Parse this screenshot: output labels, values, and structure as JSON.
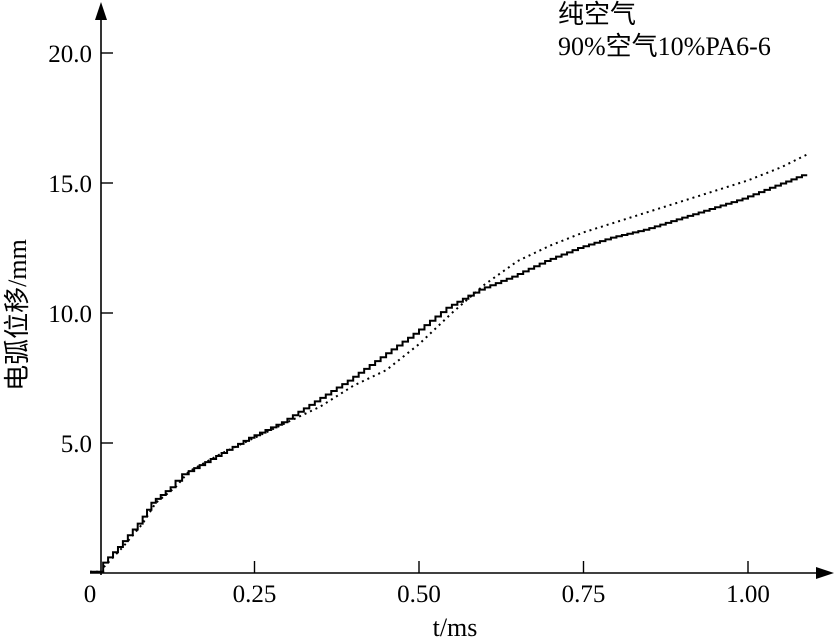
{
  "chart_data": {
    "type": "line",
    "title": "",
    "xlabel": "t/ms",
    "ylabel": "电弧位移/mm",
    "xlim": [
      0,
      1.1
    ],
    "ylim": [
      0,
      20.0
    ],
    "x_ticks": [
      0,
      0.25,
      0.5,
      0.75,
      1.0
    ],
    "x_tick_labels": [
      "0",
      "0.25",
      "0.50",
      "0.75",
      "1.00"
    ],
    "y_ticks": [
      5,
      10,
      15,
      20
    ],
    "y_tick_labels": [
      "5.0",
      "10.0",
      "15.0",
      "20.0"
    ],
    "grid": false,
    "legend_position": "top-right",
    "series": [
      {
        "name": "纯空气",
        "style": "step",
        "color": "#000000",
        "x": [
          0.02,
          0.05,
          0.08,
          0.1,
          0.13,
          0.15,
          0.2,
          0.25,
          0.3,
          0.35,
          0.4,
          0.45,
          0.5,
          0.55,
          0.6,
          0.65,
          0.7,
          0.75,
          0.8,
          0.85,
          0.9,
          0.95,
          1.0,
          1.05,
          1.09
        ],
        "y": [
          0.2,
          1.0,
          1.9,
          2.7,
          3.3,
          3.8,
          4.5,
          5.2,
          5.8,
          6.6,
          7.4,
          8.3,
          9.2,
          10.2,
          10.9,
          11.4,
          12.0,
          12.5,
          12.9,
          13.2,
          13.6,
          14.0,
          14.4,
          14.9,
          15.3
        ]
      },
      {
        "name": "90%空气10%PA6-6",
        "style": "dotted",
        "color": "#000000",
        "x": [
          0.02,
          0.05,
          0.08,
          0.1,
          0.13,
          0.15,
          0.2,
          0.25,
          0.3,
          0.35,
          0.4,
          0.45,
          0.5,
          0.55,
          0.6,
          0.65,
          0.7,
          0.75,
          0.8,
          0.85,
          0.9,
          0.95,
          1.0,
          1.05,
          1.09
        ],
        "y": [
          0.2,
          1.0,
          1.9,
          2.7,
          3.3,
          3.9,
          4.6,
          5.2,
          5.8,
          6.4,
          7.2,
          7.8,
          8.8,
          10.0,
          11.1,
          12.0,
          12.6,
          13.1,
          13.5,
          13.9,
          14.3,
          14.7,
          15.1,
          15.6,
          16.1
        ]
      }
    ]
  }
}
